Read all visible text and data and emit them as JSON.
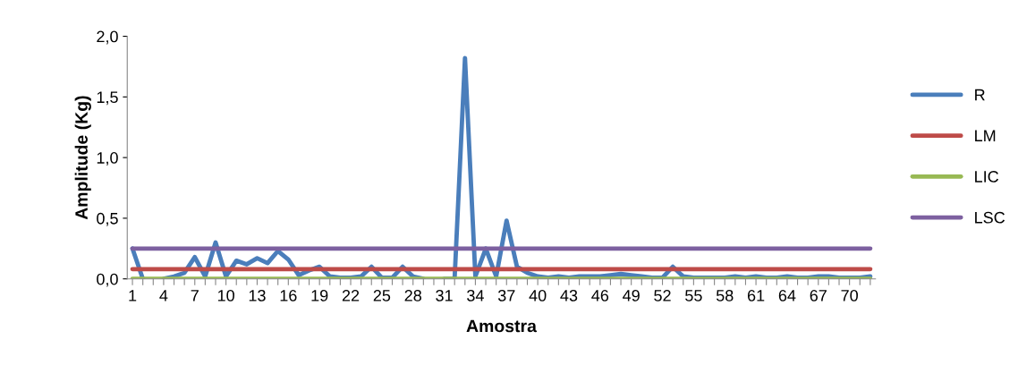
{
  "chart_data": {
    "type": "line",
    "xlabel": "Amostra",
    "ylabel": "Amplitude (Kg)",
    "categories": [
      "1",
      null,
      null,
      "4",
      null,
      null,
      "7",
      null,
      null,
      "10",
      null,
      null,
      "13",
      null,
      null,
      "16",
      null,
      null,
      "19",
      null,
      null,
      "22",
      null,
      null,
      "25",
      null,
      null,
      "28",
      null,
      null,
      "31",
      null,
      null,
      "34",
      null,
      null,
      "37",
      null,
      null,
      "40",
      null,
      null,
      "43",
      null,
      null,
      "46",
      null,
      null,
      "49",
      null,
      null,
      "52",
      null,
      null,
      "55",
      null,
      null,
      "58",
      null,
      null,
      "61",
      null,
      null,
      "64",
      null,
      null,
      "67",
      null,
      null,
      "70",
      null,
      null
    ],
    "series": [
      {
        "name": "R",
        "color": "#4a7ebb",
        "values": [
          0.25,
          0.0,
          null,
          0.0,
          0.02,
          0.05,
          0.18,
          0.02,
          0.3,
          0.02,
          0.15,
          0.12,
          0.17,
          0.13,
          0.23,
          0.16,
          0.03,
          0.07,
          0.1,
          0.02,
          0.01,
          0.01,
          0.02,
          0.1,
          0.01,
          0.01,
          0.1,
          0.02,
          0.0,
          null,
          0.0,
          0.0,
          1.82,
          0.02,
          0.25,
          0.02,
          0.48,
          0.1,
          0.05,
          0.02,
          0.01,
          0.02,
          0.01,
          0.02,
          0.02,
          0.02,
          0.03,
          0.04,
          0.03,
          0.02,
          0.01,
          0.01,
          0.1,
          0.02,
          0.01,
          0.01,
          0.01,
          0.01,
          0.02,
          0.01,
          0.02,
          0.01,
          0.01,
          0.02,
          0.01,
          0.01,
          0.02,
          0.02,
          0.01,
          0.01,
          0.01,
          0.02
        ]
      },
      {
        "name": "LM",
        "color": "#be4b48",
        "values": [
          0.08,
          0.08,
          0.08,
          0.08,
          0.08,
          0.08,
          0.08,
          0.08,
          0.08,
          0.08,
          0.08,
          0.08,
          0.08,
          0.08,
          0.08,
          0.08,
          0.08,
          0.08,
          0.08,
          0.08,
          0.08,
          0.08,
          0.08,
          0.08,
          0.08,
          0.08,
          0.08,
          0.08,
          0.08,
          0.08,
          0.08,
          0.08,
          0.08,
          0.08,
          0.08,
          0.08,
          0.08,
          0.08,
          0.08,
          0.08,
          0.08,
          0.08,
          0.08,
          0.08,
          0.08,
          0.08,
          0.08,
          0.08,
          0.08,
          0.08,
          0.08,
          0.08,
          0.08,
          0.08,
          0.08,
          0.08,
          0.08,
          0.08,
          0.08,
          0.08,
          0.08,
          0.08,
          0.08,
          0.08,
          0.08,
          0.08,
          0.08,
          0.08,
          0.08,
          0.08,
          0.08,
          0.08
        ]
      },
      {
        "name": "LIC",
        "color": "#98b954",
        "values": [
          0,
          0,
          0,
          0,
          0,
          0,
          0,
          0,
          0,
          0,
          0,
          0,
          0,
          0,
          0,
          0,
          0,
          0,
          0,
          0,
          0,
          0,
          0,
          0,
          0,
          0,
          0,
          0,
          0,
          0,
          0,
          0,
          0,
          0,
          0,
          0,
          0,
          0,
          0,
          0,
          0,
          0,
          0,
          0,
          0,
          0,
          0,
          0,
          0,
          0,
          0,
          0,
          0,
          0,
          0,
          0,
          0,
          0,
          0,
          0,
          0,
          0,
          0,
          0,
          0,
          0,
          0,
          0,
          0,
          0,
          0,
          0
        ]
      },
      {
        "name": "LSC",
        "color": "#7d60a0",
        "values": [
          0.25,
          0.25,
          0.25,
          0.25,
          0.25,
          0.25,
          0.25,
          0.25,
          0.25,
          0.25,
          0.25,
          0.25,
          0.25,
          0.25,
          0.25,
          0.25,
          0.25,
          0.25,
          0.25,
          0.25,
          0.25,
          0.25,
          0.25,
          0.25,
          0.25,
          0.25,
          0.25,
          0.25,
          0.25,
          0.25,
          0.25,
          0.25,
          0.25,
          0.25,
          0.25,
          0.25,
          0.25,
          0.25,
          0.25,
          0.25,
          0.25,
          0.25,
          0.25,
          0.25,
          0.25,
          0.25,
          0.25,
          0.25,
          0.25,
          0.25,
          0.25,
          0.25,
          0.25,
          0.25,
          0.25,
          0.25,
          0.25,
          0.25,
          0.25,
          0.25,
          0.25,
          0.25,
          0.25,
          0.25,
          0.25,
          0.25,
          0.25,
          0.25,
          0.25,
          0.25,
          0.25,
          0.25
        ]
      }
    ],
    "ylim": [
      0,
      2.0
    ],
    "yticks": [
      {
        "value": 0,
        "label": "0,0"
      },
      {
        "value": 0.5,
        "label": "0,5"
      },
      {
        "value": 1.0,
        "label": "1,0"
      },
      {
        "value": 1.5,
        "label": "1,5"
      },
      {
        "value": 2.0,
        "label": "2,0"
      }
    ],
    "legend": "right",
    "grid": false,
    "marker": "none",
    "line_style": "solid"
  }
}
